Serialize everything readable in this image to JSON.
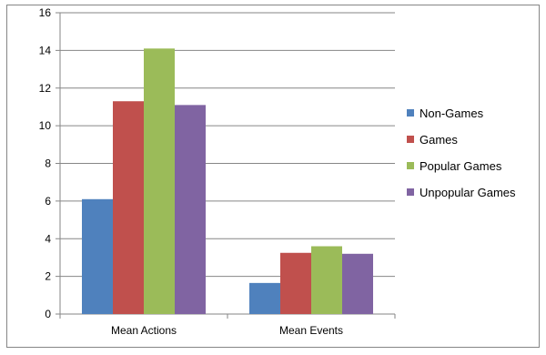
{
  "chart_data": {
    "type": "bar",
    "categories": [
      "Mean Actions",
      "Mean Events"
    ],
    "series": [
      {
        "name": "Non-Games",
        "color": "#4F81BD",
        "values": [
          6.1,
          1.65
        ]
      },
      {
        "name": "Games",
        "color": "#C0504D",
        "values": [
          11.3,
          3.25
        ]
      },
      {
        "name": "Popular Games",
        "color": "#9BBB59",
        "values": [
          14.1,
          3.6
        ]
      },
      {
        "name": "Unpopular Games",
        "color": "#8064A2",
        "values": [
          11.1,
          3.2
        ]
      }
    ],
    "ylim": [
      0,
      16
    ],
    "yticks": [
      0,
      2,
      4,
      6,
      8,
      10,
      12,
      14,
      16
    ],
    "grid": true,
    "legend": "right",
    "title": "",
    "xlabel": "",
    "ylabel": ""
  }
}
